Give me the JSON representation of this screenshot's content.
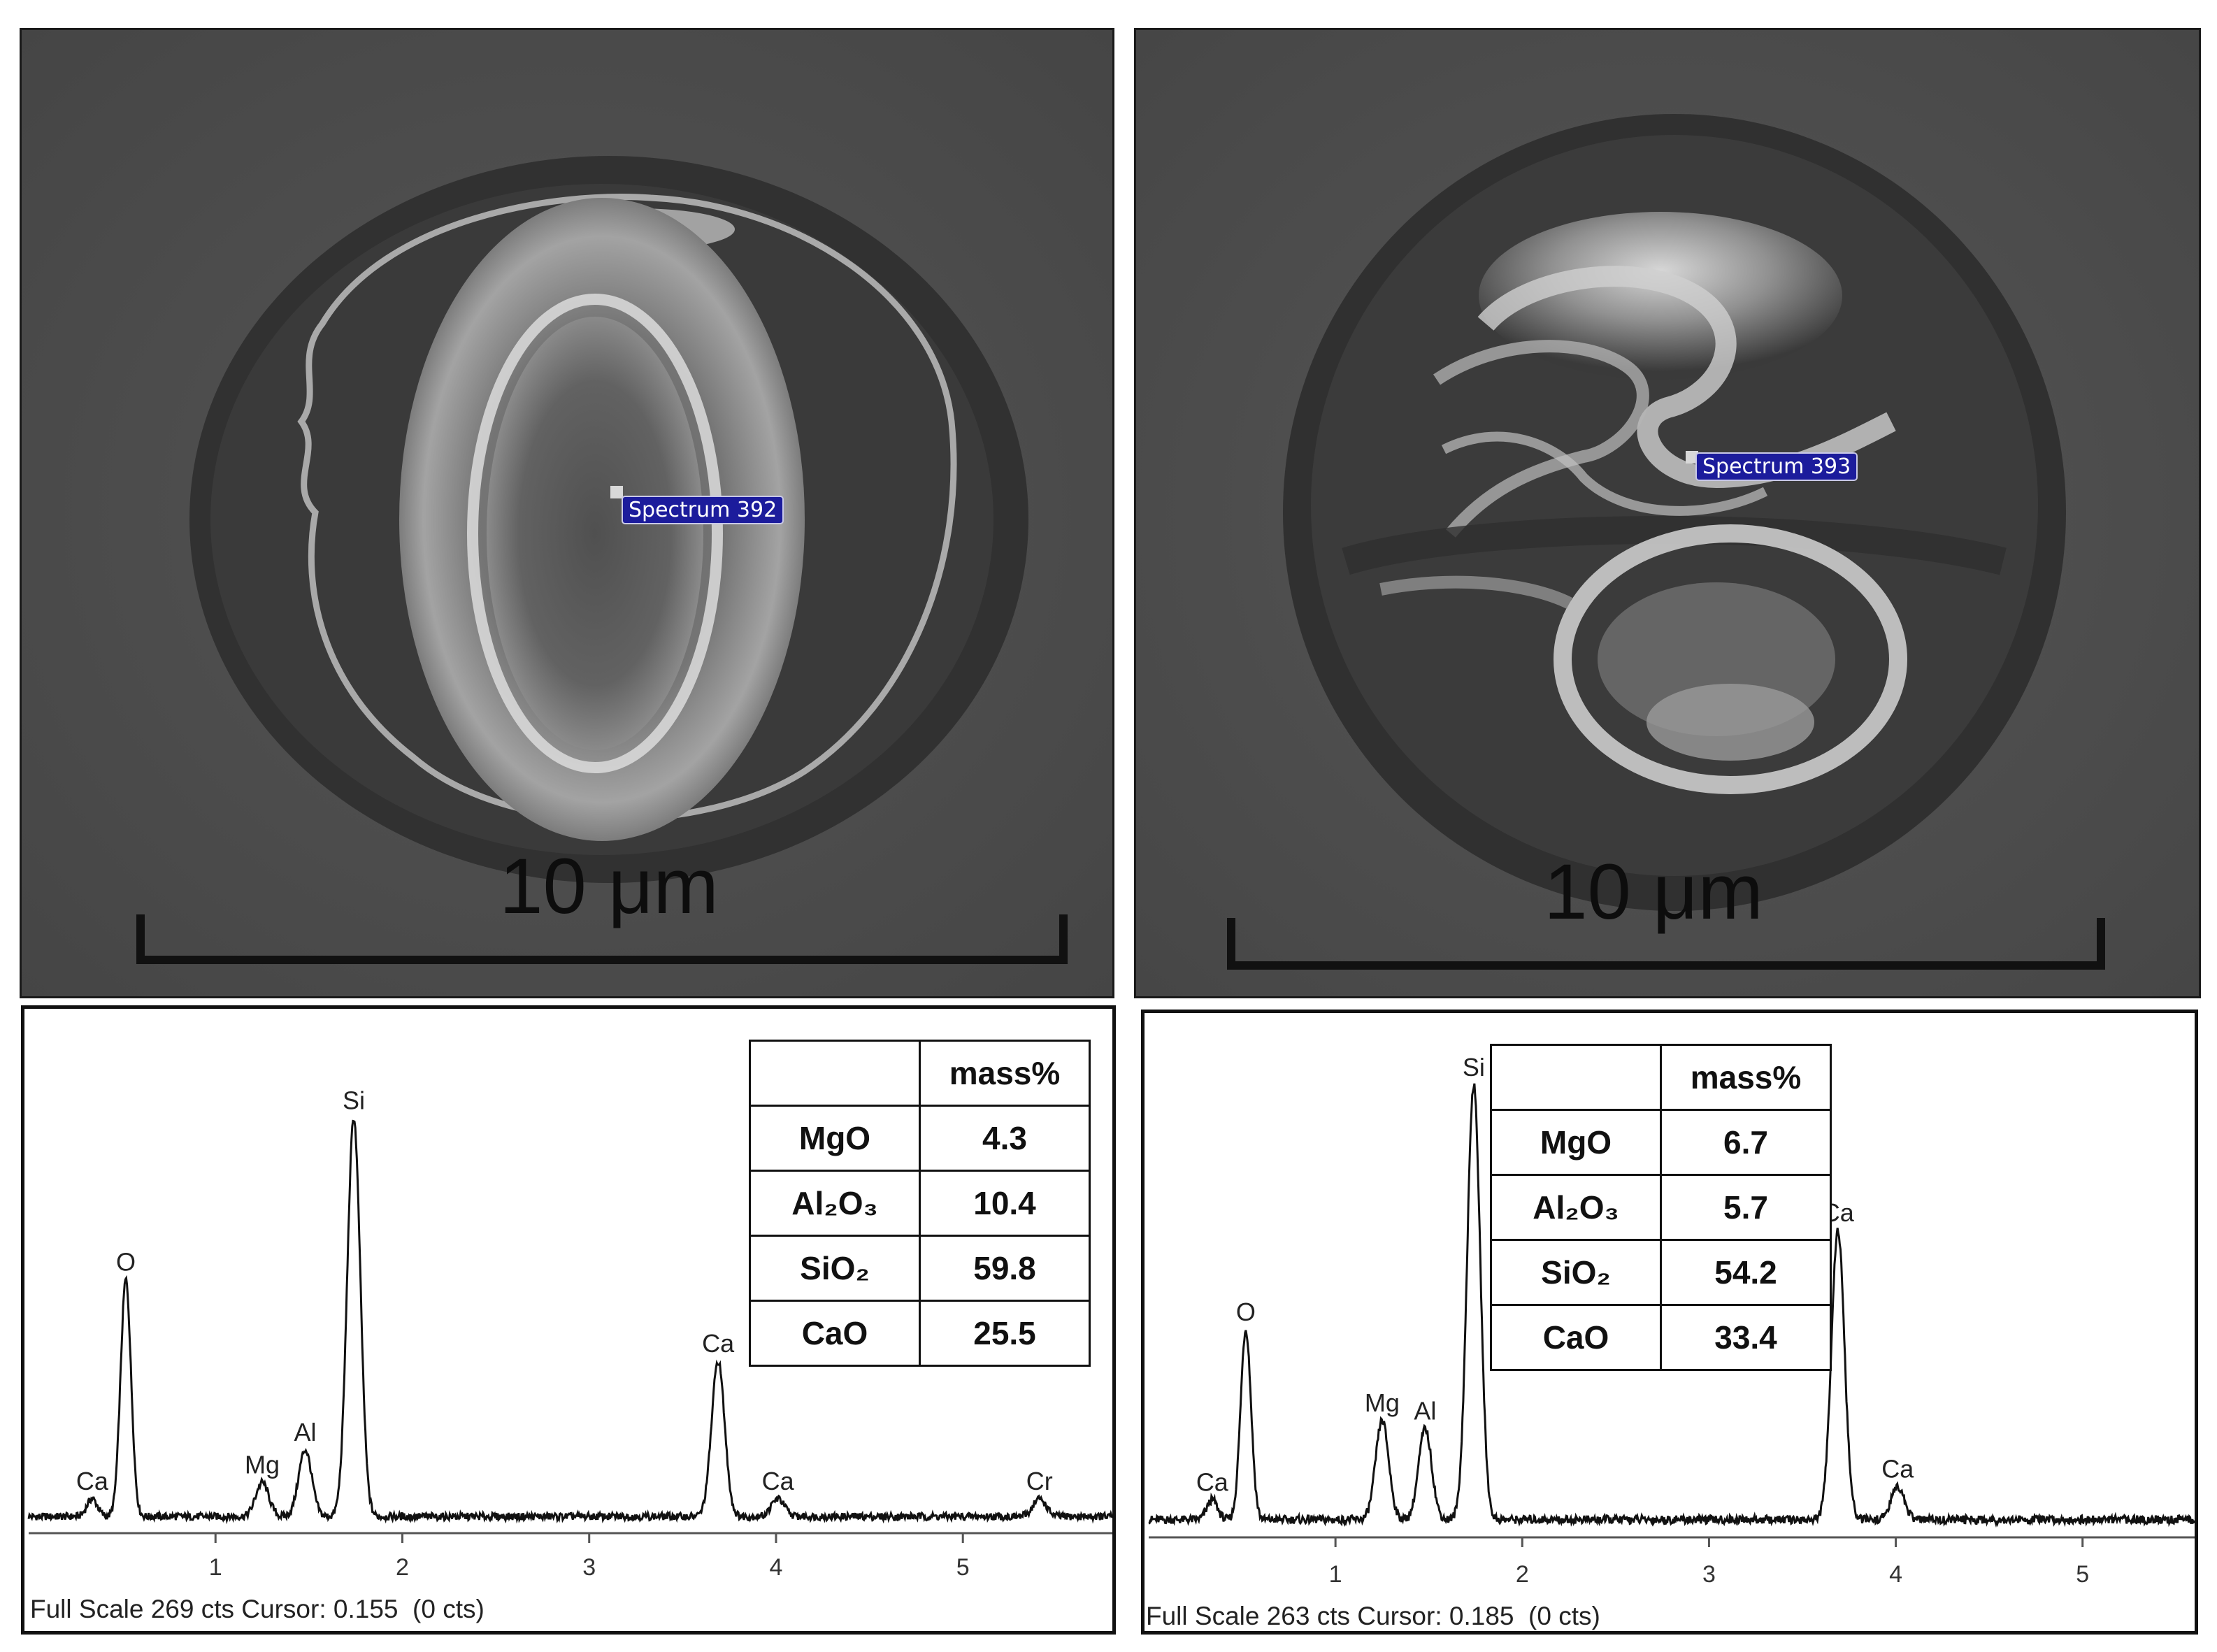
{
  "figure": {
    "left": {
      "sem": {
        "scale_label": "10 μm",
        "spectrum_label": "Spectrum 392"
      },
      "eds": {
        "footer": "Full Scale 269 cts Cursor: 0.155  (0 cts)",
        "table": {
          "header": [
            "",
            "mass%"
          ],
          "rows": [
            {
              "oxide": "MgO",
              "value": "4.3"
            },
            {
              "oxide": "Al₂O₃",
              "value": "10.4"
            },
            {
              "oxide": "SiO₂",
              "value": "59.8"
            },
            {
              "oxide": "CaO",
              "value": "25.5"
            }
          ]
        }
      }
    },
    "right": {
      "sem": {
        "scale_label": "10 μm",
        "spectrum_label": "Spectrum 393"
      },
      "eds": {
        "footer": "Full Scale 263 cts Cursor: 0.185  (0 cts)",
        "table": {
          "header": [
            "",
            "mass%"
          ],
          "rows": [
            {
              "oxide": "MgO",
              "value": "6.7"
            },
            {
              "oxide": "Al₂O₃",
              "value": "5.7"
            },
            {
              "oxide": "SiO₂",
              "value": "54.2"
            },
            {
              "oxide": "CaO",
              "value": "33.4"
            }
          ]
        }
      }
    }
  },
  "chart_data": [
    {
      "type": "line",
      "x_ticks": [
        "1",
        "2",
        "3",
        "4",
        "5"
      ],
      "xlim": [
        0,
        5.8
      ],
      "peaks": [
        {
          "label": "Ca",
          "x": 0.34,
          "counts": 12
        },
        {
          "label": "O",
          "x": 0.52,
          "counts": 160
        },
        {
          "label": "Mg",
          "x": 1.25,
          "counts": 23
        },
        {
          "label": "Al",
          "x": 1.48,
          "counts": 45
        },
        {
          "label": "Si",
          "x": 1.74,
          "counts": 269
        },
        {
          "label": "Ca",
          "x": 3.69,
          "counts": 105
        },
        {
          "label": "Ca",
          "x": 4.01,
          "counts": 12
        },
        {
          "label": "Cr",
          "x": 5.41,
          "counts": 12
        }
      ],
      "full_scale_cts": 269
    },
    {
      "type": "line",
      "x_ticks": [
        "1",
        "2",
        "3",
        "4",
        "5"
      ],
      "xlim": [
        0,
        5.6
      ],
      "peaks": [
        {
          "label": "Ca",
          "x": 0.34,
          "counts": 12
        },
        {
          "label": "O",
          "x": 0.52,
          "counts": 115
        },
        {
          "label": "Mg",
          "x": 1.25,
          "counts": 60
        },
        {
          "label": "Al",
          "x": 1.48,
          "counts": 55
        },
        {
          "label": "Si",
          "x": 1.74,
          "counts": 263
        },
        {
          "label": "Ca",
          "x": 3.69,
          "counts": 175
        },
        {
          "label": "Ca",
          "x": 4.01,
          "counts": 20
        }
      ],
      "full_scale_cts": 263
    }
  ]
}
